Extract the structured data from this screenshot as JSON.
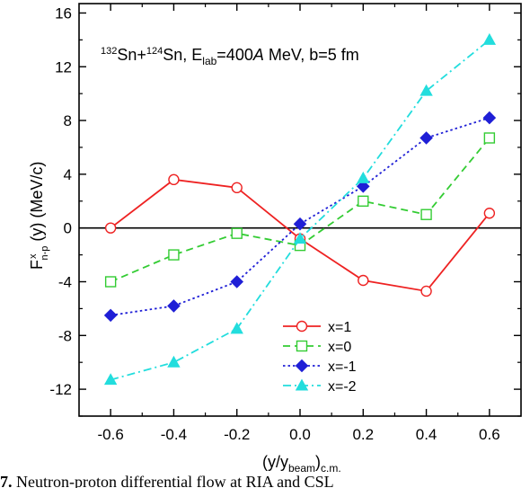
{
  "chart_data": {
    "type": "line",
    "annotation": {
      "mass_a": "132",
      "nucleus_a": "Sn+",
      "mass_b": "124",
      "nucleus_b": "Sn, E",
      "e_sub": "lab",
      "energy": "=400",
      "a_italic": "A",
      "rest": " MeV, b=5 fm"
    },
    "ylabel": {
      "main": "F",
      "sup": "x",
      "sub": "n-p",
      "rest": " (y) (MeV/c)"
    },
    "xlabel": {
      "main": "(y/y",
      "sub": "beam",
      "rest": ")",
      "sub2": "c.m."
    },
    "x_ticks": [
      "-0.6",
      "-0.4",
      "-0.2",
      "0.0",
      "0.2",
      "0.4",
      "0.6"
    ],
    "y_ticks": [
      "-12",
      "-8",
      "-4",
      "0",
      "4",
      "8",
      "12",
      "16"
    ],
    "xlim": [
      -0.7,
      0.7
    ],
    "ylim": [
      -14,
      16.7
    ],
    "zero_line": 0,
    "legend_position": "bottom-center",
    "series": [
      {
        "name": "x=1",
        "color": "#ee2222",
        "dash": "solid",
        "marker": "open-circle",
        "x": [
          -0.6,
          -0.4,
          -0.2,
          0.0,
          0.2,
          0.4,
          0.6
        ],
        "y": [
          0.0,
          3.6,
          3.0,
          -0.8,
          -3.9,
          -4.7,
          1.1
        ]
      },
      {
        "name": "x=0",
        "color": "#33cc33",
        "dash": "dash",
        "marker": "open-square",
        "x": [
          -0.6,
          -0.4,
          -0.2,
          0.0,
          0.2,
          0.4,
          0.6
        ],
        "y": [
          -4.0,
          -2.0,
          -0.4,
          -1.3,
          2.0,
          1.0,
          6.7
        ]
      },
      {
        "name": "x=-1",
        "color": "#1f1fd6",
        "dash": "dot",
        "marker": "filled-diamond",
        "x": [
          -0.6,
          -0.4,
          -0.2,
          0.0,
          0.2,
          0.4,
          0.6
        ],
        "y": [
          -6.5,
          -5.8,
          -4.0,
          0.3,
          3.1,
          6.7,
          8.2
        ]
      },
      {
        "name": "x=-2",
        "color": "#22dddd",
        "dash": "dashdot",
        "marker": "filled-triangle",
        "x": [
          -0.6,
          -0.4,
          -0.2,
          0.0,
          0.2,
          0.4,
          0.6
        ],
        "y": [
          -11.3,
          -10.0,
          -7.5,
          -0.8,
          3.7,
          10.2,
          14.0
        ]
      }
    ]
  },
  "caption": {
    "lead": "7.",
    "text": " Neutron-proton differential flow at RIA and CSL"
  }
}
